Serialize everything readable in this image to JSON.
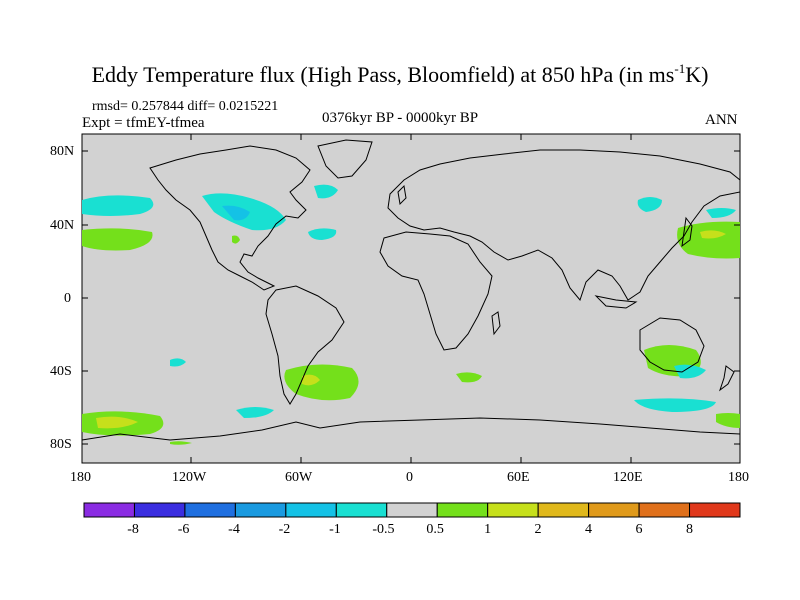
{
  "title": {
    "main": "Eddy Temperature flux (High Pass, Bloomfield) at 850 hPa (in ms",
    "sup": "-1",
    "end": "K)"
  },
  "stats": "rmsd= 0.257844 diff= 0.0215221",
  "experiment": "Expt = tfmEY-tfmea",
  "period": "0376kyr BP - 0000kyr BP",
  "season": "ANN",
  "axes": {
    "lat_labels": [
      "80N",
      "40N",
      "0",
      "40S",
      "80S"
    ],
    "lon_labels": [
      "180",
      "120W",
      "60W",
      "0",
      "60E",
      "120E",
      "180"
    ]
  },
  "colorbar": {
    "labels": [
      "-8",
      "-6",
      "-4",
      "-2",
      "-1",
      "-0.5",
      "0.5",
      "1",
      "2",
      "4",
      "6",
      "8"
    ],
    "colors": [
      "#8a2be2",
      "#3b2ee0",
      "#1f6fe0",
      "#1a9ae0",
      "#14c2e6",
      "#19e0d2",
      "#d2d2d2",
      "#74e01b",
      "#c6e01b",
      "#e0b81b",
      "#e09a1b",
      "#e0701b",
      "#e0381b"
    ]
  },
  "colors": {
    "land_ocean": "#d2d2d2",
    "positive_light": "#74e01b",
    "positive_mid": "#c6e01b",
    "negative_light": "#19e0d2",
    "negative_mid": "#14c2e6"
  }
}
